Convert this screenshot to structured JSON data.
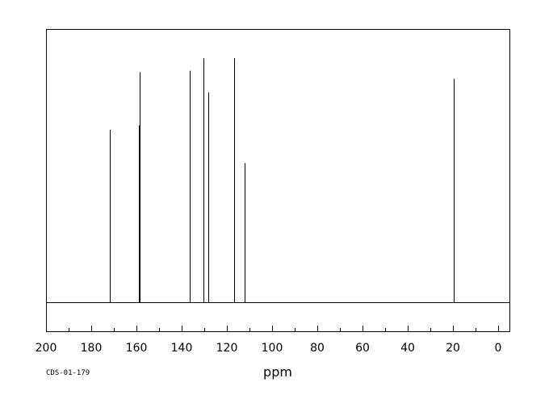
{
  "chart_data": {
    "type": "line",
    "title": "",
    "xlabel": "ppm",
    "ylabel": "",
    "xlim": [
      200,
      -5
    ],
    "x_reversed": true,
    "ylim": [
      -0.12,
      1.12
    ],
    "grid": false,
    "x_ticks": [
      200,
      180,
      160,
      140,
      120,
      100,
      80,
      60,
      40,
      20,
      0
    ],
    "tick_labels": [
      "200",
      "180",
      "160",
      "140",
      "120",
      "100",
      "80",
      "60",
      "40",
      "20",
      "0"
    ],
    "baseline": 0,
    "peaks": [
      {
        "ppm": 171.8,
        "intensity": 0.707
      },
      {
        "ppm": 159.0,
        "intensity": 0.725
      },
      {
        "ppm": 158.6,
        "intensity": 0.943
      },
      {
        "ppm": 136.6,
        "intensity": 0.949
      },
      {
        "ppm": 130.2,
        "intensity": 1.0
      },
      {
        "ppm": 128.3,
        "intensity": 0.86
      },
      {
        "ppm": 116.8,
        "intensity": 1.0
      },
      {
        "ppm": 112.3,
        "intensity": 0.57
      },
      {
        "ppm": 19.8,
        "intensity": 0.916
      }
    ]
  },
  "footer": {
    "sample_code": "CDS-01-179"
  }
}
